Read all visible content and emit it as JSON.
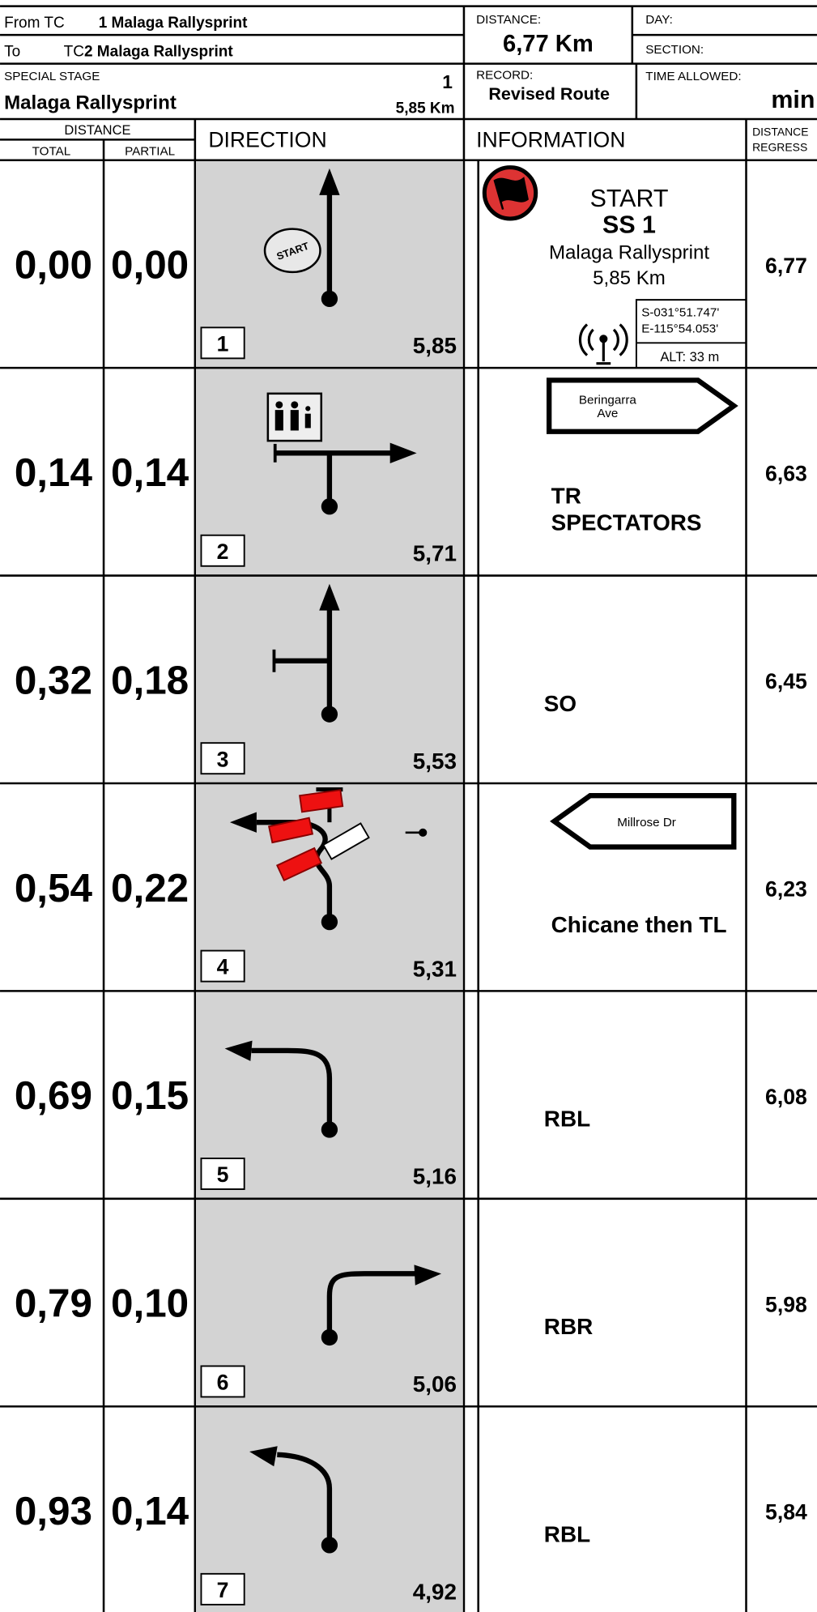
{
  "header": {
    "from_label": "From TC",
    "from_value": "1 Malaga Rallysprint",
    "to_label": "To",
    "to_tc": "TC",
    "to_value": "2 Malaga Rallysprint",
    "special_stage_label": "SPECIAL STAGE",
    "special_stage_number": "1",
    "stage_name": "Malaga Rallysprint",
    "stage_length": "5,85 Km",
    "distance_label": "DISTANCE:",
    "distance_value": "6,77 Km",
    "day_label": "DAY:",
    "section_label": "SECTION:",
    "record_label": "RECORD:",
    "record_value": "Revised Route",
    "time_allowed_label": "TIME ALLOWED:",
    "time_allowed_unit": "min"
  },
  "columns": {
    "distance": "DISTANCE",
    "total": "TOTAL",
    "partial": "PARTIAL",
    "direction": "DIRECTION",
    "information": "INFORMATION",
    "regress_1": "DISTANCE",
    "regress_2": "REGRESS"
  },
  "start_info": {
    "icon": "START",
    "title": "START",
    "stage": "SS 1",
    "name": "Malaga Rallysprint",
    "length": "5,85 Km",
    "gps": [
      "S-031°51.747'",
      "E-115°54.053'"
    ],
    "alt": "ALT: 33 m"
  },
  "rows": [
    {
      "total": "0,00",
      "partial": "0,00",
      "number": "1",
      "remaining": "5,85",
      "sign": [],
      "info": [],
      "regress": "6,77"
    },
    {
      "total": "0,14",
      "partial": "0,14",
      "number": "2",
      "remaining": "5,71",
      "sign": [
        "Beringarra",
        "Ave"
      ],
      "info": [
        "TR",
        "SPECTATORS"
      ],
      "regress": "6,63"
    },
    {
      "total": "0,32",
      "partial": "0,18",
      "number": "3",
      "remaining": "5,53",
      "sign": [],
      "info": [
        "SO"
      ],
      "regress": "6,45"
    },
    {
      "total": "0,54",
      "partial": "0,22",
      "number": "4",
      "remaining": "5,31",
      "sign": [
        "Millrose Dr"
      ],
      "info": [
        "Chicane then TL"
      ],
      "regress": "6,23"
    },
    {
      "total": "0,69",
      "partial": "0,15",
      "number": "5",
      "remaining": "5,16",
      "sign": [],
      "info": [
        "RBL"
      ],
      "regress": "6,08"
    },
    {
      "total": "0,79",
      "partial": "0,10",
      "number": "6",
      "remaining": "5,06",
      "sign": [],
      "info": [
        "RBR"
      ],
      "regress": "5,98"
    },
    {
      "total": "0,93",
      "partial": "0,14",
      "number": "7",
      "remaining": "4,92",
      "sign": [],
      "info": [
        "RBL"
      ],
      "regress": "5,84"
    }
  ]
}
